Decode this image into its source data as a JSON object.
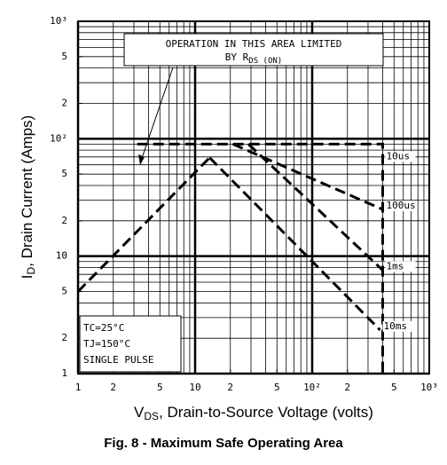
{
  "chart_data": {
    "type": "line",
    "log_x": true,
    "log_y": true,
    "grid": true,
    "xlim": [
      1,
      1000
    ],
    "ylim": [
      1,
      1000
    ],
    "xticks": [
      1,
      2,
      5,
      10,
      {
        "value": 20,
        "label": "2"
      },
      {
        "value": 50,
        "label": "5"
      },
      {
        "value": 100,
        "label": "10²"
      },
      {
        "value": 200,
        "label": "2"
      },
      {
        "value": 500,
        "label": "5"
      },
      {
        "value": 1000,
        "label": "10³"
      }
    ],
    "yticks": [
      1,
      2,
      5,
      10,
      {
        "value": 20,
        "label": "2"
      },
      {
        "value": 50,
        "label": "5"
      },
      {
        "value": 100,
        "label": "10²"
      },
      {
        "value": 200,
        "label": "2"
      },
      {
        "value": 500,
        "label": "5"
      },
      {
        "value": 1000,
        "label": "10³"
      }
    ],
    "xlabel": {
      "main": "V",
      "sub": "DS",
      "rest": ", Drain-to-Source Voltage (volts)"
    },
    "ylabel": {
      "main": "I",
      "sub": "D",
      "rest": ", Drain Current (Amps)"
    },
    "caption": "Fig. 8 - Maximum Safe Operating Area",
    "annotation": {
      "line1": "OPERATION IN THIS AREA LIMITED",
      "line2": "BY R",
      "line2_sub": "DS (ON)"
    },
    "conditions": [
      "TC=25°C",
      "TJ=150°C",
      "SINGLE PULSE"
    ],
    "color": "#000000",
    "series": [
      {
        "x": [
          1,
          13.3
        ],
        "values": [
          5,
          69
        ]
      },
      {
        "name": "10us",
        "x": [
          3.2,
          400,
          400
        ],
        "values": [
          90,
          90,
          1
        ]
      },
      {
        "name": "100us",
        "x": [
          21,
          400
        ],
        "values": [
          90,
          25
        ]
      },
      {
        "name": "1ms",
        "x": [
          28.5,
          400
        ],
        "values": [
          90,
          7.6
        ]
      },
      {
        "name": "10ms",
        "x": [
          13.3,
          380
        ],
        "values": [
          69,
          2.35
        ]
      }
    ]
  }
}
